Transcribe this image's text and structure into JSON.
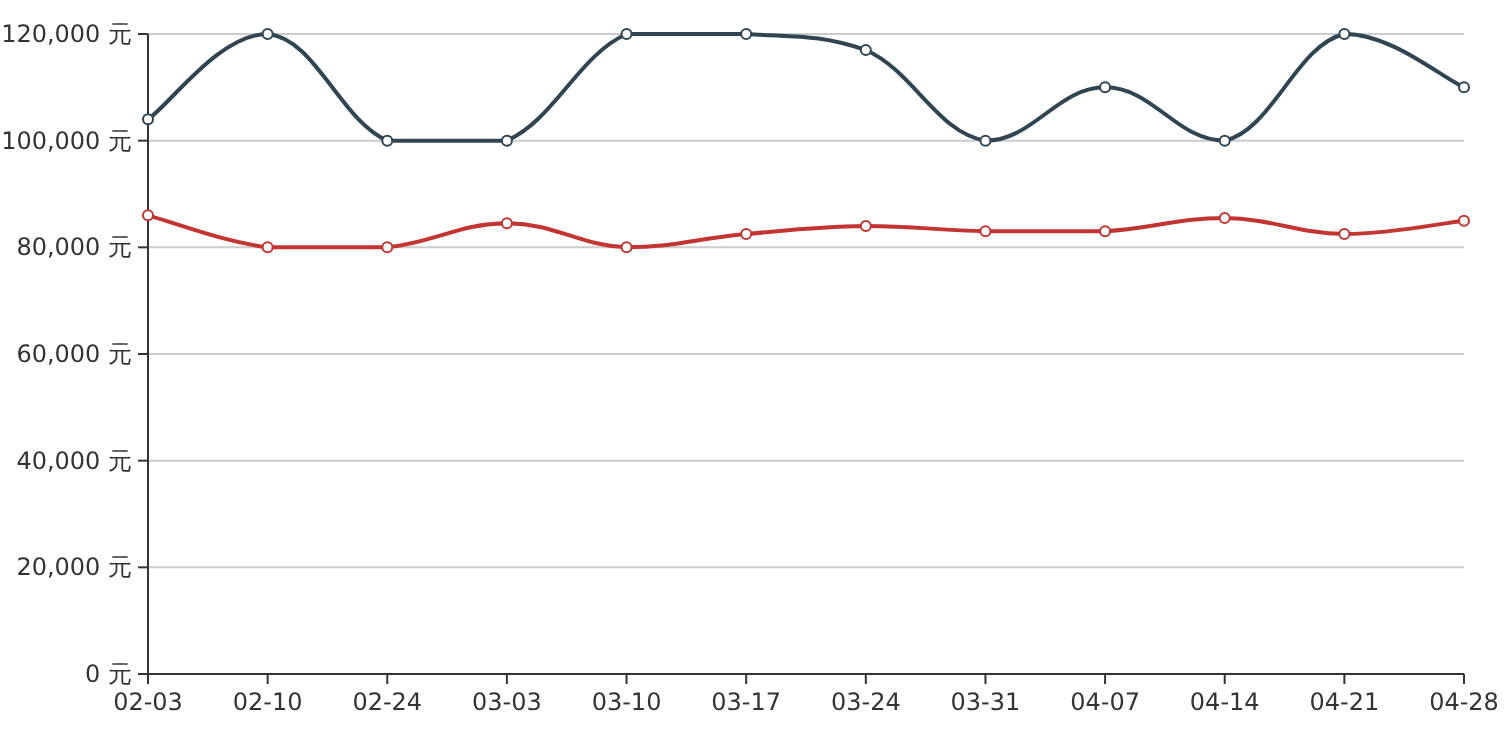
{
  "chart_data": {
    "type": "line",
    "categories": [
      "02-03",
      "02-10",
      "02-24",
      "03-03",
      "03-10",
      "03-17",
      "03-24",
      "03-31",
      "04-07",
      "04-14",
      "04-21",
      "04-28"
    ],
    "series": [
      {
        "color": "#2f4554",
        "values": [
          104000,
          120000,
          100000,
          100000,
          120000,
          120000,
          117000,
          100000,
          110000,
          100000,
          120000,
          110000
        ]
      },
      {
        "color": "#c23531",
        "values": [
          86000,
          80000,
          80000,
          84500,
          80000,
          82500,
          84000,
          83000,
          83000,
          85500,
          82500,
          85000
        ]
      }
    ],
    "ylim": [
      0,
      120000
    ],
    "yticks": [
      {
        "value": 0,
        "label": "0 元"
      },
      {
        "value": 20000,
        "label": "20,000 元"
      },
      {
        "value": 40000,
        "label": "40,000 元"
      },
      {
        "value": 60000,
        "label": "60,000 元"
      },
      {
        "value": 80000,
        "label": "80,000 元"
      },
      {
        "value": 100000,
        "label": "100,000 元"
      },
      {
        "value": 120000,
        "label": "120,000 元"
      }
    ],
    "grid": "y",
    "marker": "circle",
    "line_style": "solid"
  }
}
